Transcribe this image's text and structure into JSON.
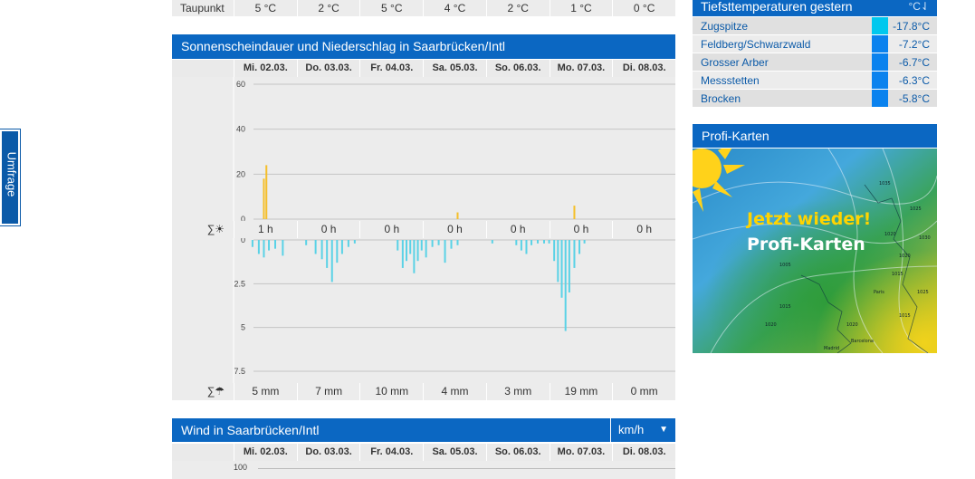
{
  "side_tab": {
    "label": "Umfrage"
  },
  "dewpoint": {
    "label": "Taupunkt",
    "values": [
      "5 °C",
      "2 °C",
      "5 °C",
      "4 °C",
      "2 °C",
      "1 °C",
      "0 °C"
    ]
  },
  "sun_rain": {
    "title": "Sonnenscheindauer und Niederschlag in Saarbrücken/Intl",
    "days": [
      "Mi. 02.03.",
      "Do. 03.03.",
      "Fr. 04.03.",
      "Sa. 05.03.",
      "So. 06.03.",
      "Mo. 07.03.",
      "Di. 08.03."
    ],
    "sun_sum_label": "∑☀",
    "sun_sums": [
      "1 h",
      "0 h",
      "0 h",
      "0 h",
      "0 h",
      "0 h",
      "0 h"
    ],
    "rain_sum_label": "∑☂",
    "rain_sums": [
      "5 mm",
      "7 mm",
      "10 mm",
      "4 mm",
      "3 mm",
      "19 mm",
      "0 mm"
    ]
  },
  "chart_data": [
    {
      "type": "bar",
      "title": "Sonnenscheindauer",
      "y_ticks": [
        "60",
        "40",
        "20",
        "0"
      ],
      "ylim": [
        0,
        60
      ],
      "series": [
        {
          "values": [
            {
              "day": 0,
              "offset": 0.48,
              "v": 18
            },
            {
              "day": 0,
              "offset": 0.52,
              "v": 24
            },
            {
              "day": 3,
              "offset": 0.55,
              "v": 3
            },
            {
              "day": 5,
              "offset": 0.4,
              "v": 6
            }
          ]
        }
      ],
      "color": "#f5bf2a"
    },
    {
      "type": "bar",
      "title": "Niederschlag",
      "y_ticks": [
        "0",
        "2.5",
        "5",
        "7.5"
      ],
      "ylim": [
        0,
        7.5
      ],
      "series": [
        {
          "values": [
            {
              "day": 0,
              "offset": 0.3,
              "v": 0.4
            },
            {
              "day": 0,
              "offset": 0.4,
              "v": 0.8
            },
            {
              "day": 0,
              "offset": 0.48,
              "v": 1.0
            },
            {
              "day": 0,
              "offset": 0.56,
              "v": 0.6
            },
            {
              "day": 0,
              "offset": 0.66,
              "v": 0.5
            },
            {
              "day": 0,
              "offset": 0.78,
              "v": 0.9
            },
            {
              "day": 1,
              "offset": 0.15,
              "v": 0.3
            },
            {
              "day": 1,
              "offset": 0.3,
              "v": 0.8
            },
            {
              "day": 1,
              "offset": 0.4,
              "v": 1.1
            },
            {
              "day": 1,
              "offset": 0.48,
              "v": 1.6
            },
            {
              "day": 1,
              "offset": 0.56,
              "v": 2.4
            },
            {
              "day": 1,
              "offset": 0.64,
              "v": 1.3
            },
            {
              "day": 1,
              "offset": 0.72,
              "v": 0.8
            },
            {
              "day": 1,
              "offset": 0.82,
              "v": 0.4
            },
            {
              "day": 1,
              "offset": 0.92,
              "v": 0.2
            },
            {
              "day": 2,
              "offset": 0.6,
              "v": 0.6
            },
            {
              "day": 2,
              "offset": 0.68,
              "v": 1.6
            },
            {
              "day": 2,
              "offset": 0.74,
              "v": 1.2
            },
            {
              "day": 2,
              "offset": 0.8,
              "v": 0.8
            },
            {
              "day": 2,
              "offset": 0.86,
              "v": 1.9
            },
            {
              "day": 2,
              "offset": 0.92,
              "v": 1.2
            },
            {
              "day": 2,
              "offset": 0.98,
              "v": 0.6
            },
            {
              "day": 3,
              "offset": 0.05,
              "v": 1.0
            },
            {
              "day": 3,
              "offset": 0.15,
              "v": 0.4
            },
            {
              "day": 3,
              "offset": 0.25,
              "v": 0.3
            },
            {
              "day": 3,
              "offset": 0.35,
              "v": 1.3
            },
            {
              "day": 3,
              "offset": 0.45,
              "v": 0.5
            },
            {
              "day": 3,
              "offset": 0.55,
              "v": 0.3
            },
            {
              "day": 4,
              "offset": 0.1,
              "v": 0.2
            },
            {
              "day": 4,
              "offset": 0.48,
              "v": 0.3
            },
            {
              "day": 4,
              "offset": 0.56,
              "v": 0.6
            },
            {
              "day": 4,
              "offset": 0.64,
              "v": 0.8
            },
            {
              "day": 4,
              "offset": 0.72,
              "v": 0.3
            },
            {
              "day": 4,
              "offset": 0.82,
              "v": 0.2
            },
            {
              "day": 4,
              "offset": 0.92,
              "v": 0.2
            },
            {
              "day": 5,
              "offset": 0.0,
              "v": 0.2
            },
            {
              "day": 5,
              "offset": 0.08,
              "v": 1.2
            },
            {
              "day": 5,
              "offset": 0.14,
              "v": 2.4
            },
            {
              "day": 5,
              "offset": 0.2,
              "v": 3.3
            },
            {
              "day": 5,
              "offset": 0.26,
              "v": 5.2
            },
            {
              "day": 5,
              "offset": 0.32,
              "v": 3.0
            },
            {
              "day": 5,
              "offset": 0.4,
              "v": 1.6
            },
            {
              "day": 5,
              "offset": 0.48,
              "v": 0.8
            },
            {
              "day": 5,
              "offset": 0.56,
              "v": 0.2
            }
          ]
        }
      ],
      "color": "#5ad2e6"
    }
  ],
  "tmin": {
    "title": "Tiefsttemperaturen gestern",
    "unit": "°C⇃",
    "rows": [
      {
        "name": "Zugspitze",
        "value": "-17.8°C",
        "color": "#00c8ee"
      },
      {
        "name": "Feldberg/Schwarzwald",
        "value": "-7.2°C",
        "color": "#0a82ee"
      },
      {
        "name": "Grosser Arber",
        "value": "-6.7°C",
        "color": "#0a82ee"
      },
      {
        "name": "Messstetten",
        "value": "-6.3°C",
        "color": "#0a82ee"
      },
      {
        "name": "Brocken",
        "value": "-5.8°C",
        "color": "#0a82ee"
      }
    ]
  },
  "profi": {
    "title": "Profi-Karten",
    "line1": "Jetzt wieder!",
    "line2": "Profi-Karten",
    "labels": [
      "1035",
      "1020",
      "1025",
      "1020",
      "Paris",
      "Madrid",
      "Barcelona",
      "1020",
      "1015",
      "1015",
      "1025",
      "1030",
      "1005",
      "1015",
      "1020"
    ]
  },
  "wind": {
    "title": "Wind in Saarbrücken/Intl",
    "unit": "km/h",
    "days": [
      "Mi. 02.03.",
      "Do. 03.03.",
      "Fr. 04.03.",
      "Sa. 05.03.",
      "So. 06.03.",
      "Mo. 07.03.",
      "Di. 08.03."
    ],
    "y_tick": "100"
  }
}
